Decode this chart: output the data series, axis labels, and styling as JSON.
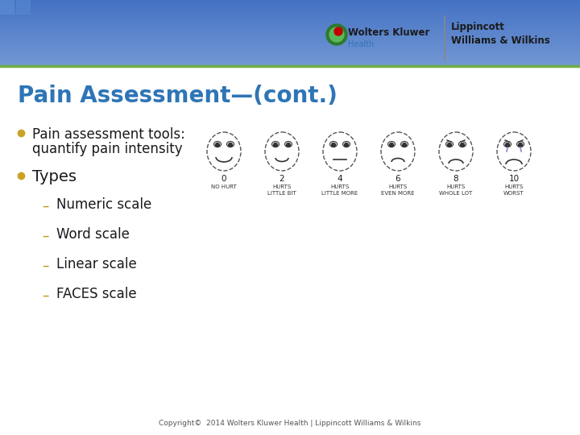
{
  "title": "Pain Assessment—(cont.)",
  "title_color": "#2E75B6",
  "bg_color": "#FFFFFF",
  "bullet_color": "#C9A227",
  "bullet1_text_line1": "Pain assessment tools:",
  "bullet1_text_line2": "quantify pain intensity",
  "bullet2_text": "Types",
  "sub_bullets": [
    "Numeric scale",
    "Word scale",
    "Linear scale",
    "FACES scale"
  ],
  "copyright_text": "Copyright©  2014 Wolters Kluwer Health | Lippincott Williams & Wilkins",
  "company1": "Wolters Kluwer",
  "company2_sub": "Health",
  "company3": "Lippincott\nWilliams & Wilkins",
  "faces_numbers": [
    "0",
    "2",
    "4",
    "6",
    "8",
    "10"
  ],
  "faces_labels_line1": [
    "NO HURT",
    "HURTS",
    "HURTS",
    "HURTS",
    "HURTS",
    "HURTS"
  ],
  "faces_labels_line2": [
    "",
    "LITTLE BIT",
    "LITTLE MORE",
    "EVEN MORE",
    "WHOLE LOT",
    "WORST"
  ],
  "text_color": "#1A1A1A",
  "dash_color": "#B8960C",
  "font_size_title": 20,
  "font_size_bullet1": 12,
  "font_size_bullet2": 14,
  "font_size_sub": 12,
  "header_blue_top": "#4A7CC7",
  "header_blue_bottom": "#C8DCEF",
  "header_green_line": "#70AD47"
}
